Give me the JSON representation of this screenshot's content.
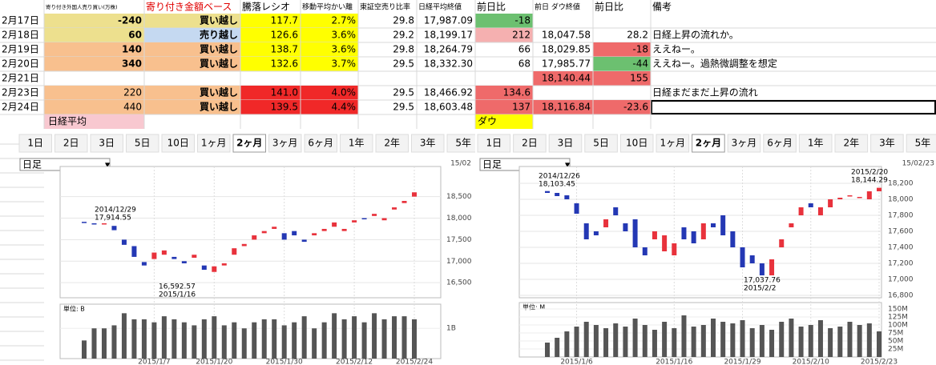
{
  "sheet": {
    "headers": [
      null,
      "寄り付き外国人売り買い(万株)",
      "寄り付き金額ベース",
      "騰落レシオ",
      "移動平均かい離",
      "東証空売り比率",
      "日経平均終値",
      "前日比",
      "前日 ダウ終値",
      "前日比",
      "備考"
    ],
    "rows": [
      [
        "2月17日",
        "-240",
        "買い越し",
        "117.7",
        "2.7%",
        "29.8",
        "17,987.09",
        "-18",
        null,
        null,
        null
      ],
      [
        "2月18日",
        "60",
        "売り越し",
        "126.6",
        "3.6%",
        "29.2",
        "18,199.17",
        "212",
        "18,047.58",
        "28.2",
        "日経上昇の流れか。"
      ],
      [
        "2月19日",
        "140",
        "買い越し",
        "138.7",
        "3.6%",
        "29.8",
        "18,264.79",
        "66",
        "18,029.85",
        "-18",
        "ええねー。"
      ],
      [
        "2月20日",
        "340",
        "買い越し",
        "132.6",
        "3.7%",
        "29.5",
        "18,332.30",
        "68",
        "17,985.77",
        "-44",
        "ええねー。過熱微調整を想定"
      ],
      [
        "2月21日",
        null,
        null,
        null,
        null,
        null,
        null,
        null,
        "18,140.44",
        "155",
        null
      ],
      [
        "2月23日",
        "220",
        "買い越し",
        "141.0",
        "4.0%",
        "29.5",
        "18,466.92",
        "134.6",
        null,
        null,
        "日経まだまだ上昇の流れ"
      ],
      [
        "2月24日",
        "440",
        "買い越し",
        "139.5",
        "4.4%",
        "29.5",
        "18,603.48",
        "137",
        "18,116.84",
        "-23.6",
        null
      ]
    ],
    "footer_left": "日経平均",
    "footer_right": "ダウ"
  },
  "chart_data": [
    {
      "type": "candlestick",
      "tabs": [
        "1日",
        "2日",
        "3日",
        "5日",
        "10日",
        "1ヶ月",
        "2ヶ月",
        "3ヶ月",
        "6ヶ月",
        "1年",
        "2年",
        "3年",
        "5年"
      ],
      "period": "日足",
      "date": "15/02",
      "categories": [
        null,
        null,
        null,
        null,
        null,
        null,
        null,
        "2015/1/7",
        null,
        null,
        null,
        null,
        null,
        "2015/1/20",
        null,
        null,
        null,
        null,
        null,
        null,
        "2015/1/30",
        null,
        null,
        null,
        null,
        null,
        null,
        "2015/2/12",
        null,
        null,
        null,
        null,
        null,
        "2015/2/24"
      ],
      "open": [
        17914,
        17880,
        17860,
        17820,
        17500,
        17350,
        16980,
        17050,
        17150,
        17100,
        17000,
        17080,
        16900,
        16750,
        16900,
        17150,
        17350,
        17500,
        17650,
        17750,
        17650,
        17700,
        17500,
        17600,
        17700,
        17800,
        17700,
        17900,
        18000,
        18050,
        17950,
        18200,
        18350,
        18500
      ],
      "close": [
        17900,
        17870,
        17880,
        17720,
        17380,
        17100,
        16900,
        17200,
        17250,
        17050,
        16950,
        17150,
        16800,
        16880,
        16950,
        17300,
        17400,
        17600,
        17700,
        17800,
        17500,
        17600,
        17450,
        17650,
        17750,
        17900,
        17750,
        17950,
        17980,
        18100,
        18000,
        18250,
        18400,
        18600
      ],
      "volume": [
        0.6,
        1.0,
        1.0,
        1.1,
        1.5,
        1.3,
        1.3,
        1.2,
        1.4,
        1.3,
        1.2,
        1.1,
        1.3,
        1.4,
        1.1,
        1.2,
        1.0,
        1.2,
        1.3,
        1.3,
        1.1,
        1.2,
        1.4,
        1.0,
        1.2,
        1.5,
        1.3,
        1.4,
        1.2,
        1.5,
        1.3,
        1.4,
        1.4,
        1.3
      ],
      "ylim": [
        16150,
        19200
      ],
      "yticks": [
        {
          "value": 16500,
          "label": "16,500"
        },
        {
          "value": 17000,
          "label": "17,000"
        },
        {
          "value": 17500,
          "label": "17,500"
        },
        {
          "value": 18000,
          "label": "18,000"
        },
        {
          "value": 18500,
          "label": "18,500"
        }
      ],
      "vlim": [
        0,
        1.8
      ],
      "vticks": [
        {
          "value": 1,
          "label": "1B"
        }
      ],
      "vol_unit": "単位: B",
      "annotations": [
        [
          "2014/12/29",
          "17,914.55"
        ],
        [
          "16,592.57",
          "2015/1/16"
        ]
      ],
      "up_color": "#e8323c",
      "down_color": "#2438b4"
    },
    {
      "type": "candlestick",
      "tabs": [
        "1日",
        "2日",
        "3日",
        "5日",
        "10日",
        "1ヶ月",
        "2ヶ月",
        "3ヶ月",
        "6ヶ月",
        "1年",
        "2年",
        "3年",
        "5年"
      ],
      "period": "日足",
      "date": "15/02/23",
      "categories": [
        null,
        null,
        null,
        "2015/1/6",
        null,
        null,
        null,
        null,
        null,
        null,
        null,
        null,
        null,
        "2015/1/16",
        null,
        null,
        null,
        null,
        null,
        null,
        "2015/1/29",
        null,
        null,
        null,
        null,
        null,
        null,
        "2015/2/10",
        null,
        null,
        null,
        null,
        null,
        null,
        "2015/2/23"
      ],
      "open": [
        18103,
        18080,
        18050,
        17950,
        17700,
        17600,
        17650,
        17900,
        17700,
        17750,
        17400,
        17500,
        17350,
        17300,
        17650,
        17600,
        17500,
        17700,
        17800,
        17600,
        17400,
        17300,
        17200,
        17050,
        17400,
        17650,
        17800,
        17950,
        17800,
        17900,
        18000,
        18040,
        18020,
        18000,
        18100
      ],
      "close": [
        18080,
        18040,
        18000,
        17820,
        17500,
        17550,
        17750,
        17800,
        17600,
        17400,
        17300,
        17600,
        17550,
        17450,
        17500,
        17450,
        17700,
        17650,
        17550,
        17400,
        17150,
        17200,
        17050,
        17250,
        17500,
        17700,
        17900,
        17900,
        17900,
        18000,
        18020,
        18050,
        18030,
        18100,
        18144
      ],
      "volume": [
        45,
        60,
        80,
        95,
        110,
        100,
        90,
        105,
        95,
        120,
        100,
        85,
        110,
        90,
        130,
        95,
        100,
        120,
        110,
        105,
        115,
        90,
        100,
        85,
        110,
        120,
        95,
        100,
        115,
        90,
        95,
        110,
        100,
        105,
        80
      ],
      "ylim": [
        16770,
        18410
      ],
      "yticks": [
        {
          "value": 16800,
          "label": "16,800"
        },
        {
          "value": 17000,
          "label": "17,000"
        },
        {
          "value": 17200,
          "label": "17,200"
        },
        {
          "value": 17400,
          "label": "17,400"
        },
        {
          "value": 17600,
          "label": "17,600"
        },
        {
          "value": 17800,
          "label": "17,800"
        },
        {
          "value": 18000,
          "label": "18,000"
        },
        {
          "value": 18200,
          "label": "18,200"
        }
      ],
      "vlim": [
        0,
        170
      ],
      "vticks": [
        {
          "value": 25,
          "label": "25M"
        },
        {
          "value": 50,
          "label": "50M"
        },
        {
          "value": 75,
          "label": "75M"
        },
        {
          "value": 100,
          "label": "100M"
        },
        {
          "value": 125,
          "label": "125M"
        },
        {
          "value": 150,
          "label": "150M"
        }
      ],
      "vol_unit": "単位: M",
      "annotations": [
        [
          "2014/12/26",
          "18,103.45"
        ],
        [
          "2015/2/20",
          "18,144.29"
        ],
        [
          "17,037.76",
          "2015/2/2"
        ]
      ],
      "up_color": "#e8323c",
      "down_color": "#2438b4"
    }
  ]
}
